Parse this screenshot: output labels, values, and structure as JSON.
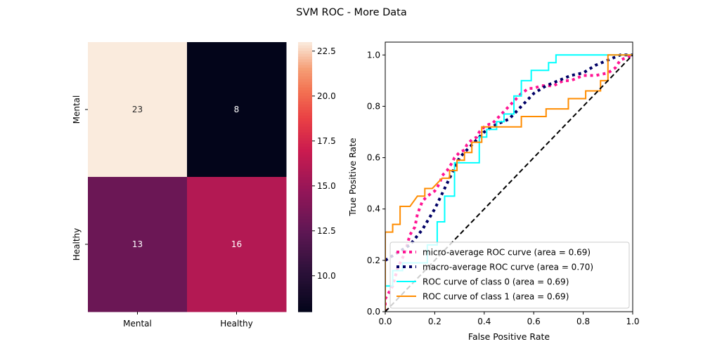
{
  "figure_title": "SVM ROC - More Data",
  "chart_data": [
    {
      "type": "heatmap",
      "title": "",
      "row_labels": [
        "Mental",
        "Healthy"
      ],
      "col_labels": [
        "Mental",
        "Healthy"
      ],
      "values": [
        [
          23,
          8
        ],
        [
          13,
          16
        ]
      ],
      "colorbar": {
        "range": [
          8,
          23
        ],
        "ticks": [
          "10.0",
          "12.5",
          "15.0",
          "17.5",
          "20.0",
          "22.5"
        ],
        "tick_values": [
          10.0,
          12.5,
          15.0,
          17.5,
          20.0,
          22.5
        ]
      }
    },
    {
      "type": "line",
      "title": "",
      "xlabel": "False Positive Rate",
      "ylabel": "True Positive Rate",
      "xlim": [
        0.0,
        1.0
      ],
      "ylim": [
        0.0,
        1.05
      ],
      "xticks": [
        "0.0",
        "0.2",
        "0.4",
        "0.6",
        "0.8",
        "1.0"
      ],
      "xtick_values": [
        0.0,
        0.2,
        0.4,
        0.6,
        0.8,
        1.0
      ],
      "yticks": [
        "0.0",
        "0.2",
        "0.4",
        "0.6",
        "0.8",
        "1.0"
      ],
      "ytick_values": [
        0.0,
        0.2,
        0.4,
        0.6,
        0.8,
        1.0
      ],
      "legend_position": "lower-right",
      "series": [
        {
          "name": "micro-average ROC curve (area = 0.69)",
          "color": "#ff1493",
          "style": "dotted",
          "x": [
            0.0,
            0.0,
            0.03,
            0.05,
            0.08,
            0.1,
            0.12,
            0.13,
            0.15,
            0.17,
            0.2,
            0.22,
            0.23,
            0.25,
            0.27,
            0.28,
            0.3,
            0.32,
            0.33,
            0.35,
            0.37,
            0.38,
            0.4,
            0.42,
            0.43,
            0.45,
            0.47,
            0.48,
            0.5,
            0.52,
            0.53,
            0.55,
            0.58,
            0.6,
            0.63,
            0.65,
            0.68,
            0.72,
            0.75,
            0.8,
            0.85,
            0.9,
            0.93,
            0.95,
            1.0
          ],
          "y": [
            0.0,
            0.05,
            0.1,
            0.17,
            0.23,
            0.3,
            0.33,
            0.38,
            0.43,
            0.45,
            0.47,
            0.5,
            0.53,
            0.55,
            0.58,
            0.6,
            0.62,
            0.63,
            0.65,
            0.67,
            0.68,
            0.7,
            0.72,
            0.73,
            0.73,
            0.75,
            0.77,
            0.78,
            0.8,
            0.82,
            0.83,
            0.85,
            0.87,
            0.87,
            0.88,
            0.88,
            0.88,
            0.9,
            0.9,
            0.92,
            0.92,
            0.93,
            0.95,
            0.98,
            1.0
          ]
        },
        {
          "name": "macro-average ROC curve (area = 0.70)",
          "color": "#000066",
          "style": "dotted",
          "x": [
            0.0,
            0.05,
            0.1,
            0.15,
            0.2,
            0.25,
            0.3,
            0.35,
            0.4,
            0.45,
            0.5,
            0.55,
            0.6,
            0.65,
            0.7,
            0.75,
            0.8,
            0.85,
            0.9,
            0.95,
            1.0
          ],
          "y": [
            0.2,
            0.23,
            0.26,
            0.32,
            0.4,
            0.5,
            0.6,
            0.65,
            0.7,
            0.73,
            0.75,
            0.8,
            0.85,
            0.88,
            0.9,
            0.92,
            0.93,
            0.96,
            0.98,
            1.0,
            1.0
          ]
        },
        {
          "name": "ROC curve of class 0 (area = 0.69)",
          "color": "#00ffff",
          "style": "solid",
          "x": [
            0.0,
            0.0,
            0.03,
            0.03,
            0.07,
            0.07,
            0.17,
            0.17,
            0.21,
            0.21,
            0.24,
            0.24,
            0.28,
            0.28,
            0.38,
            0.38,
            0.41,
            0.41,
            0.45,
            0.45,
            0.48,
            0.48,
            0.52,
            0.52,
            0.55,
            0.55,
            0.59,
            0.59,
            0.66,
            0.66,
            0.69,
            0.69,
            1.0
          ],
          "y": [
            0.0,
            0.1,
            0.1,
            0.16,
            0.16,
            0.19,
            0.19,
            0.26,
            0.26,
            0.35,
            0.35,
            0.45,
            0.45,
            0.58,
            0.58,
            0.68,
            0.68,
            0.71,
            0.71,
            0.74,
            0.74,
            0.77,
            0.77,
            0.84,
            0.84,
            0.9,
            0.9,
            0.94,
            0.94,
            0.97,
            0.97,
            1.0,
            1.0
          ]
        },
        {
          "name": "ROC curve of class 1 (area = 0.69)",
          "color": "#ff8c00",
          "style": "solid",
          "x": [
            0.0,
            0.0,
            0.03,
            0.03,
            0.06,
            0.06,
            0.1,
            0.13,
            0.16,
            0.16,
            0.19,
            0.23,
            0.26,
            0.26,
            0.29,
            0.29,
            0.32,
            0.32,
            0.35,
            0.35,
            0.39,
            0.39,
            0.42,
            0.42,
            0.45,
            0.45,
            0.55,
            0.55,
            0.65,
            0.65,
            0.74,
            0.74,
            0.81,
            0.81,
            0.87,
            0.87,
            0.9,
            0.9,
            1.0
          ],
          "y": [
            0.0,
            0.31,
            0.31,
            0.34,
            0.34,
            0.41,
            0.41,
            0.45,
            0.45,
            0.48,
            0.48,
            0.52,
            0.52,
            0.55,
            0.55,
            0.59,
            0.59,
            0.62,
            0.62,
            0.66,
            0.66,
            0.72,
            0.72,
            0.72,
            0.72,
            0.72,
            0.72,
            0.76,
            0.76,
            0.79,
            0.79,
            0.83,
            0.83,
            0.86,
            0.86,
            0.9,
            0.9,
            1.0,
            1.0
          ]
        },
        {
          "name": "",
          "color": "#000000",
          "style": "dashed",
          "x": [
            0.0,
            1.0
          ],
          "y": [
            0.0,
            1.0
          ]
        }
      ]
    }
  ]
}
